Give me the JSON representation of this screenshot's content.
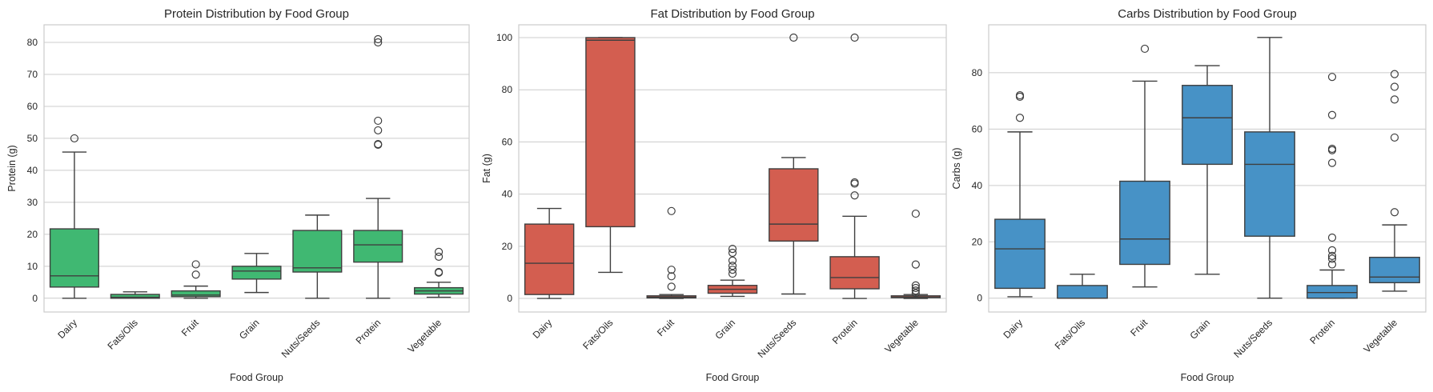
{
  "chart_data": [
    {
      "type": "box",
      "title": "Protein Distribution by Food Group",
      "xlabel": "Food Group",
      "ylabel": "Protein (g)",
      "ylim": [
        -4.3,
        85.5
      ],
      "yticks": [
        0,
        10,
        20,
        30,
        40,
        50,
        60,
        70,
        80
      ],
      "grid": true,
      "color": "#40b872",
      "categories": [
        "Dairy",
        "Fats/Oils",
        "Fruit",
        "Grain",
        "Nuts/Seeds",
        "Protein",
        "Vegetable"
      ],
      "boxes": [
        {
          "whislo": 0,
          "q1": 3.5,
          "med": 7,
          "q3": 21.7,
          "whishi": 45.7,
          "fliers": [
            50
          ]
        },
        {
          "whislo": 0,
          "q1": 0,
          "med": 0.3,
          "q3": 1.2,
          "whishi": 2,
          "fliers": []
        },
        {
          "whislo": 0,
          "q1": 0.5,
          "med": 1,
          "q3": 2.3,
          "whishi": 3.8,
          "fliers": [
            7.4,
            10.6
          ]
        },
        {
          "whislo": 1.8,
          "q1": 6,
          "med": 8.5,
          "q3": 10,
          "whishi": 14,
          "fliers": []
        },
        {
          "whislo": 0,
          "q1": 8.2,
          "med": 9.5,
          "q3": 21.2,
          "whishi": 26,
          "fliers": []
        },
        {
          "whislo": 0,
          "q1": 11.3,
          "med": 16.7,
          "q3": 21.2,
          "whishi": 31.2,
          "fliers": [
            48,
            48.2,
            52.5,
            55.5,
            80,
            81
          ]
        },
        {
          "whislo": 0.3,
          "q1": 1.3,
          "med": 2.3,
          "q3": 3.3,
          "whishi": 5,
          "fliers": [
            8,
            8.2,
            13,
            14.5
          ]
        }
      ]
    },
    {
      "type": "box",
      "title": "Fat Distribution by Food Group",
      "xlabel": "Food Group",
      "ylabel": "Fat (g)",
      "ylim": [
        -5.2,
        104.9
      ],
      "yticks": [
        0,
        20,
        40,
        60,
        80,
        100
      ],
      "grid": true,
      "color": "#d35e50",
      "categories": [
        "Dairy",
        "Fats/Oils",
        "Fruit",
        "Grain",
        "Nuts/Seeds",
        "Protein",
        "Vegetable"
      ],
      "boxes": [
        {
          "whislo": 0,
          "q1": 1.5,
          "med": 13.5,
          "q3": 28.5,
          "whishi": 34.5,
          "fliers": []
        },
        {
          "whislo": 10,
          "q1": 27.5,
          "med": 99,
          "q3": 100,
          "whishi": 100,
          "fliers": []
        },
        {
          "whislo": 0,
          "q1": 0.2,
          "med": 0.5,
          "q3": 1,
          "whishi": 1.5,
          "fliers": [
            4.5,
            8.5,
            11,
            33.5
          ]
        },
        {
          "whislo": 0.8,
          "q1": 2,
          "med": 3.5,
          "q3": 5,
          "whishi": 7,
          "fliers": [
            9.5,
            11,
            12.5,
            14.5,
            17.5,
            19
          ]
        },
        {
          "whislo": 1.7,
          "q1": 22,
          "med": 28.5,
          "q3": 49.7,
          "whishi": 54,
          "fliers": [
            100
          ]
        },
        {
          "whislo": 0,
          "q1": 3.7,
          "med": 8,
          "q3": 16,
          "whishi": 31.5,
          "fliers": [
            39.5,
            44,
            44.5,
            100
          ]
        },
        {
          "whislo": 0,
          "q1": 0.3,
          "med": 0.5,
          "q3": 1,
          "whishi": 1.5,
          "fliers": [
            2,
            3,
            4,
            5,
            13,
            32.5
          ]
        }
      ]
    },
    {
      "type": "box",
      "title": "Carbs Distribution by Food Group",
      "xlabel": "Food Group",
      "ylabel": "Carbs (g)",
      "ylim": [
        -4.9,
        97
      ],
      "yticks": [
        0,
        20,
        40,
        60,
        80
      ],
      "grid": true,
      "color": "#4792c6",
      "categories": [
        "Dairy",
        "Fats/Oils",
        "Fruit",
        "Grain",
        "Nuts/Seeds",
        "Protein",
        "Vegetable"
      ],
      "boxes": [
        {
          "whislo": 0.5,
          "q1": 3.5,
          "med": 17.5,
          "q3": 28,
          "whishi": 59,
          "fliers": [
            64,
            71.5,
            72
          ]
        },
        {
          "whislo": 0,
          "q1": 0,
          "med": 0,
          "q3": 4.5,
          "whishi": 8.5,
          "fliers": []
        },
        {
          "whislo": 4,
          "q1": 12,
          "med": 21,
          "q3": 41.5,
          "whishi": 77,
          "fliers": [
            88.5
          ]
        },
        {
          "whislo": 8.5,
          "q1": 47.5,
          "med": 64,
          "q3": 75.5,
          "whishi": 82.5,
          "fliers": []
        },
        {
          "whislo": 0,
          "q1": 22,
          "med": 47.5,
          "q3": 59,
          "whishi": 92.5,
          "fliers": []
        },
        {
          "whislo": 0,
          "q1": 0,
          "med": 2,
          "q3": 4.5,
          "whishi": 10,
          "fliers": [
            12,
            14,
            15,
            17,
            21.5,
            48,
            52.5,
            53,
            65,
            78.5
          ]
        },
        {
          "whislo": 2.5,
          "q1": 5.5,
          "med": 7.5,
          "q3": 14.5,
          "whishi": 26,
          "fliers": [
            30.5,
            57,
            70.5,
            75,
            79.5
          ]
        }
      ]
    }
  ]
}
